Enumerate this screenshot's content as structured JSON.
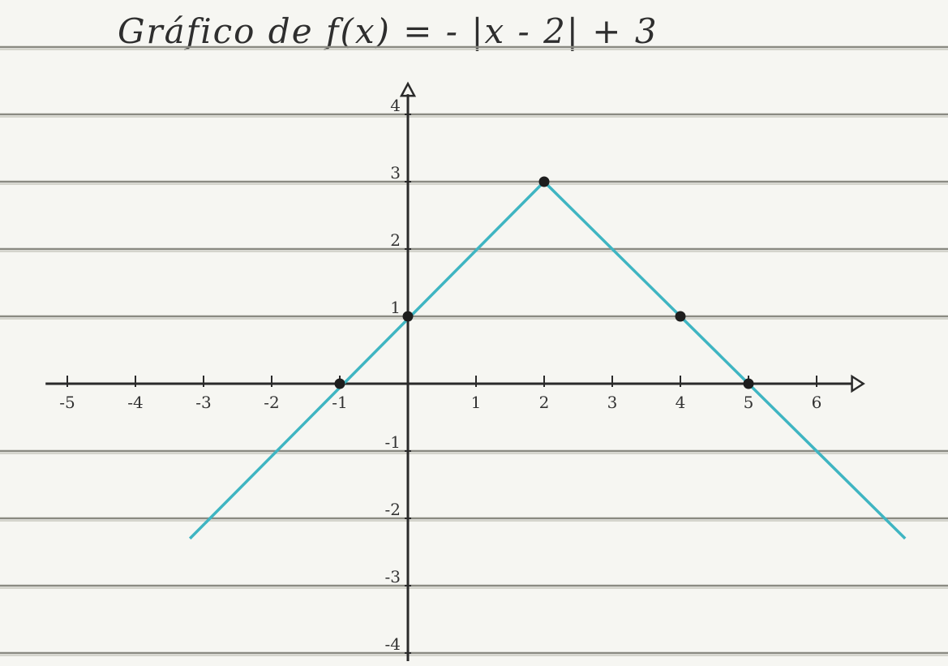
{
  "chart_data": {
    "type": "line",
    "title": "Gráfico de f(x) = - |x - 2| + 3",
    "xlabel": "",
    "ylabel": "",
    "xlim": [
      -5.2,
      6.4
    ],
    "ylim": [
      -4,
      4.3
    ],
    "x_ticks": [
      -5,
      -4,
      -3,
      -2,
      -1,
      1,
      2,
      3,
      4,
      5,
      6
    ],
    "x_tick_labels": [
      "-5",
      "-4",
      "-3",
      "-2",
      "-1",
      "1",
      "2",
      "3",
      "4",
      "5",
      "6"
    ],
    "y_ticks": [
      4,
      3,
      2,
      1,
      -1,
      -2,
      -3,
      -4
    ],
    "y_tick_labels": [
      "4",
      "3",
      "2",
      "1",
      "-1",
      "-2",
      "-3",
      "-4"
    ],
    "series": [
      {
        "color": "#3fb5c2",
        "x": [
          -3.2,
          2,
          7.3
        ],
        "y": [
          -2.3,
          3,
          -2.3
        ]
      }
    ],
    "points": [
      {
        "x": 0,
        "y": 1
      },
      {
        "x": 2,
        "y": 3
      },
      {
        "x": 4,
        "y": 1
      },
      {
        "x": -1,
        "y": 0
      },
      {
        "x": 5,
        "y": 0
      }
    ],
    "grid": true,
    "legend": "none"
  }
}
